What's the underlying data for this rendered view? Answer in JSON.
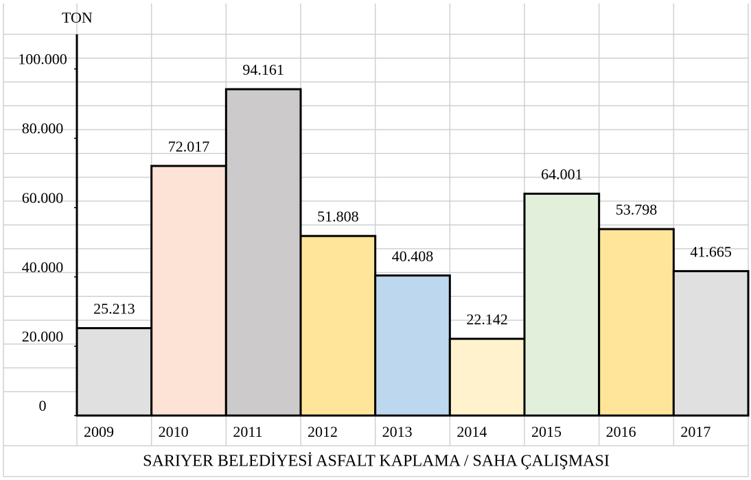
{
  "chart_data": {
    "type": "bar",
    "title": "SARIYER BELEDİYESİ ASFALT KAPLAMA / SAHA ÇALIŞMASI",
    "y_label": "TON",
    "categories": [
      "2009",
      "2010",
      "2011",
      "2012",
      "2013",
      "2014",
      "2015",
      "2016",
      "2017"
    ],
    "values": [
      25213,
      72017,
      94161,
      51808,
      40408,
      22142,
      64001,
      53798,
      41665
    ],
    "value_labels": [
      "25.213",
      "72.017",
      "94.161",
      "51.808",
      "40.408",
      "22.142",
      "64.001",
      "53.798",
      "41.665"
    ],
    "colors": [
      "#e0e0e0",
      "#fde3d6",
      "#cccacb",
      "#fee599",
      "#bdd7ee",
      "#fff2cc",
      "#e2efda",
      "#fee599",
      "#e0e0e0"
    ],
    "ylim": [
      0,
      110000
    ],
    "yticks": [
      0,
      {
        "value": 20000,
        "label": "20.000"
      },
      {
        "value": 40000,
        "label": "40.000"
      },
      {
        "value": 60000,
        "label": "60.000"
      },
      {
        "value": 80000,
        "label": "80.000"
      },
      {
        "value": 100000,
        "label": "100.000"
      }
    ],
    "grid": true
  }
}
